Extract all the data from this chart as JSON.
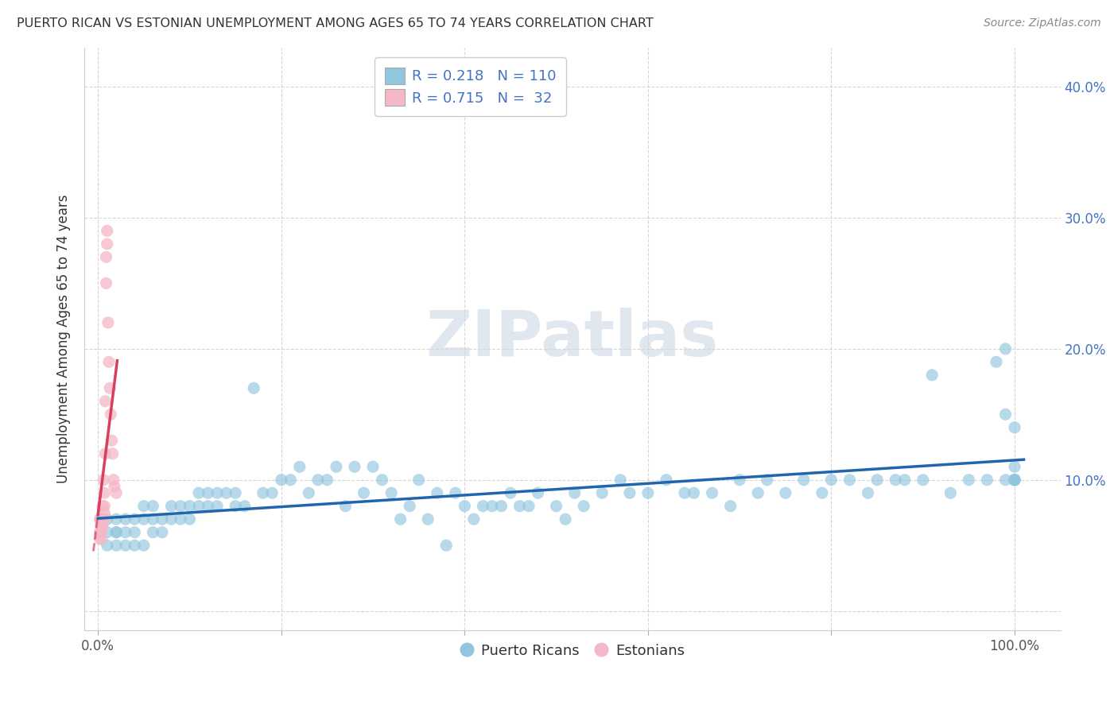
{
  "title": "PUERTO RICAN VS ESTONIAN UNEMPLOYMENT AMONG AGES 65 TO 74 YEARS CORRELATION CHART",
  "source": "Source: ZipAtlas.com",
  "ylabel": "Unemployment Among Ages 65 to 74 years",
  "blue_color": "#92c5de",
  "pink_color": "#f4b8c8",
  "blue_line_color": "#2166ac",
  "pink_line_color": "#d6405a",
  "R_blue": 0.218,
  "N_blue": 110,
  "R_pink": 0.715,
  "N_pink": 32,
  "watermark": "ZIPatlas",
  "blue_scatter_x": [
    0.01,
    0.01,
    0.01,
    0.02,
    0.02,
    0.02,
    0.02,
    0.03,
    0.03,
    0.03,
    0.04,
    0.04,
    0.04,
    0.05,
    0.05,
    0.05,
    0.06,
    0.06,
    0.06,
    0.07,
    0.07,
    0.08,
    0.08,
    0.09,
    0.09,
    0.1,
    0.1,
    0.11,
    0.11,
    0.12,
    0.12,
    0.13,
    0.13,
    0.14,
    0.15,
    0.15,
    0.16,
    0.17,
    0.18,
    0.19,
    0.2,
    0.21,
    0.22,
    0.23,
    0.24,
    0.25,
    0.26,
    0.27,
    0.28,
    0.29,
    0.3,
    0.31,
    0.32,
    0.33,
    0.34,
    0.35,
    0.36,
    0.37,
    0.38,
    0.39,
    0.4,
    0.41,
    0.42,
    0.43,
    0.44,
    0.45,
    0.46,
    0.47,
    0.48,
    0.5,
    0.51,
    0.52,
    0.53,
    0.55,
    0.57,
    0.58,
    0.6,
    0.62,
    0.64,
    0.65,
    0.67,
    0.69,
    0.7,
    0.72,
    0.73,
    0.75,
    0.77,
    0.79,
    0.8,
    0.82,
    0.84,
    0.85,
    0.87,
    0.88,
    0.9,
    0.91,
    0.93,
    0.95,
    0.97,
    0.98,
    0.99,
    0.99,
    0.99,
    1.0,
    1.0,
    1.0,
    1.0,
    1.0,
    1.0,
    1.0
  ],
  "blue_scatter_y": [
    0.07,
    0.06,
    0.05,
    0.06,
    0.07,
    0.06,
    0.05,
    0.07,
    0.06,
    0.05,
    0.07,
    0.06,
    0.05,
    0.07,
    0.08,
    0.05,
    0.07,
    0.08,
    0.06,
    0.07,
    0.06,
    0.08,
    0.07,
    0.08,
    0.07,
    0.08,
    0.07,
    0.09,
    0.08,
    0.09,
    0.08,
    0.09,
    0.08,
    0.09,
    0.09,
    0.08,
    0.08,
    0.17,
    0.09,
    0.09,
    0.1,
    0.1,
    0.11,
    0.09,
    0.1,
    0.1,
    0.11,
    0.08,
    0.11,
    0.09,
    0.11,
    0.1,
    0.09,
    0.07,
    0.08,
    0.1,
    0.07,
    0.09,
    0.05,
    0.09,
    0.08,
    0.07,
    0.08,
    0.08,
    0.08,
    0.09,
    0.08,
    0.08,
    0.09,
    0.08,
    0.07,
    0.09,
    0.08,
    0.09,
    0.1,
    0.09,
    0.09,
    0.1,
    0.09,
    0.09,
    0.09,
    0.08,
    0.1,
    0.09,
    0.1,
    0.09,
    0.1,
    0.09,
    0.1,
    0.1,
    0.09,
    0.1,
    0.1,
    0.1,
    0.1,
    0.18,
    0.09,
    0.1,
    0.1,
    0.19,
    0.2,
    0.15,
    0.1,
    0.1,
    0.11,
    0.1,
    0.14,
    0.1,
    0.1,
    0.1
  ],
  "pink_scatter_x": [
    0.002,
    0.002,
    0.002,
    0.003,
    0.003,
    0.003,
    0.004,
    0.004,
    0.004,
    0.005,
    0.005,
    0.005,
    0.006,
    0.006,
    0.007,
    0.007,
    0.007,
    0.008,
    0.008,
    0.009,
    0.009,
    0.01,
    0.01,
    0.011,
    0.012,
    0.013,
    0.014,
    0.015,
    0.016,
    0.017,
    0.018,
    0.02
  ],
  "pink_scatter_y": [
    0.06,
    0.07,
    0.055,
    0.065,
    0.07,
    0.06,
    0.065,
    0.07,
    0.055,
    0.07,
    0.08,
    0.065,
    0.1,
    0.07,
    0.09,
    0.08,
    0.075,
    0.12,
    0.16,
    0.25,
    0.27,
    0.29,
    0.28,
    0.22,
    0.19,
    0.17,
    0.15,
    0.13,
    0.12,
    0.1,
    0.095,
    0.09
  ]
}
